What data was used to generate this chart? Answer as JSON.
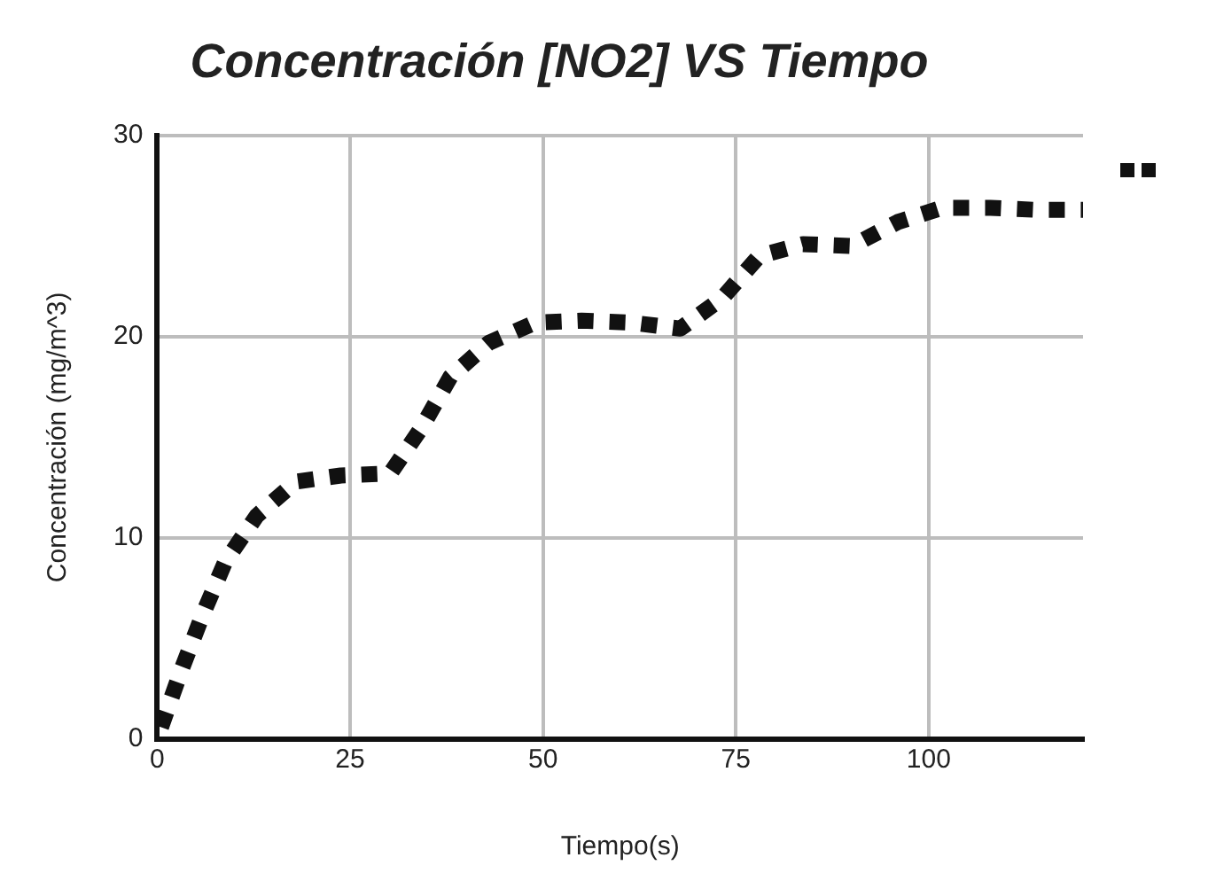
{
  "chart_data": {
    "type": "line",
    "title": "Concentración [NO2] VS Tiempo",
    "xlabel": "Tiempo(s)",
    "ylabel": "Concentración (mg/m^3)",
    "x": [
      0.5,
      3,
      5.8,
      8.8,
      12.9,
      18,
      23.8,
      30.2,
      34.3,
      38,
      43,
      49,
      55,
      61.5,
      67.8,
      73.2,
      78,
      83.7,
      90,
      96,
      101.7,
      108,
      114,
      120
    ],
    "series": [
      {
        "color": "#111111",
        "values": [
          0.6,
          3.3,
          6.1,
          8.8,
          11.1,
          12.8,
          13.1,
          13.2,
          15.5,
          18,
          19.7,
          20.7,
          20.8,
          20.7,
          20.4,
          21.9,
          24,
          24.6,
          24.5,
          25.7,
          26.4,
          26.4,
          26.3,
          26.3
        ]
      }
    ],
    "xlim": [
      0,
      120
    ],
    "ylim": [
      0,
      30
    ],
    "xticks": [
      0,
      25,
      50,
      75,
      100
    ],
    "yticks": [
      0,
      10,
      20,
      30
    ],
    "grid": true,
    "marker": "none",
    "line_style": "dotted"
  }
}
